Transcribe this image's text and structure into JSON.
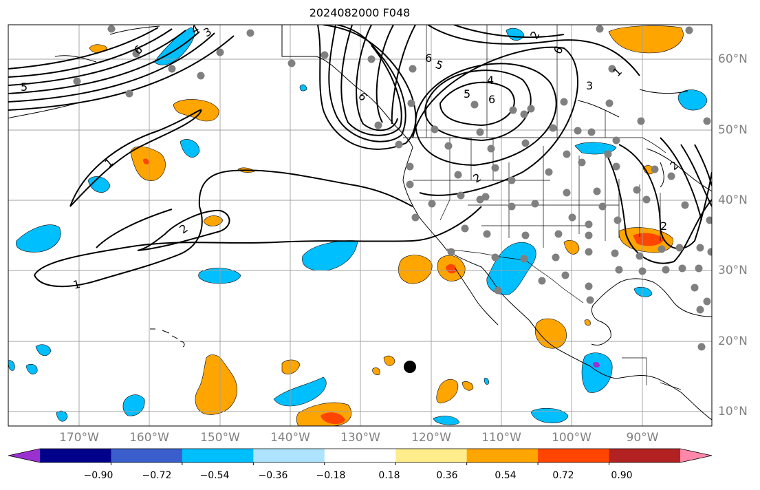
{
  "title": "2024082000 F048",
  "map": {
    "projection": "Plate Carree",
    "lon_range": [
      -180,
      -80
    ],
    "lat_range": [
      8,
      65
    ],
    "lon_ticks": [
      -170,
      -160,
      -150,
      -140,
      -130,
      -120,
      -110,
      -100,
      -90
    ],
    "lat_ticks": [
      10,
      20,
      30,
      40,
      50,
      60
    ],
    "lon_tick_labels": [
      "170°W",
      "160°W",
      "150°W",
      "140°W",
      "130°W",
      "120°W",
      "110°W",
      "100°W",
      "90°W"
    ],
    "lat_tick_labels": [
      "10°N",
      "20°N",
      "30°N",
      "40°N",
      "50°N",
      "60°N"
    ],
    "grid": true,
    "contour_labels": [
      "1",
      "1",
      "2",
      "2",
      "2",
      "3",
      "3",
      "4",
      "4",
      "5",
      "5",
      "5",
      "6",
      "6",
      "6",
      "6",
      "6",
      "2",
      "2",
      "1"
    ],
    "marker": {
      "label": "storm-center-dot",
      "lon": -123,
      "lat": 16.3
    }
  },
  "colorbar": {
    "tick_labels": [
      "−0.90",
      "−0.72",
      "−0.54",
      "−0.36",
      "−0.18",
      "0.18",
      "0.36",
      "0.54",
      "0.72",
      "0.90"
    ],
    "bounds": [
      -0.9,
      -0.72,
      -0.54,
      -0.36,
      -0.18,
      0.18,
      0.36,
      0.54,
      0.72,
      0.9
    ],
    "colors": [
      "#9b30d0",
      "#00008b",
      "#3a5fcd",
      "#00bfff",
      "#aee3ff",
      "#ffffff",
      "#ffec8b",
      "#ffa500",
      "#ff4500",
      "#b22222",
      "#ff88aa"
    ],
    "extend": "both"
  },
  "shading": {
    "negative": "#00bfff",
    "positive": "#ffa500",
    "strong_positive": "#ff4500",
    "strong_negative": "#9b30d0"
  },
  "stations_color": "#808080"
}
